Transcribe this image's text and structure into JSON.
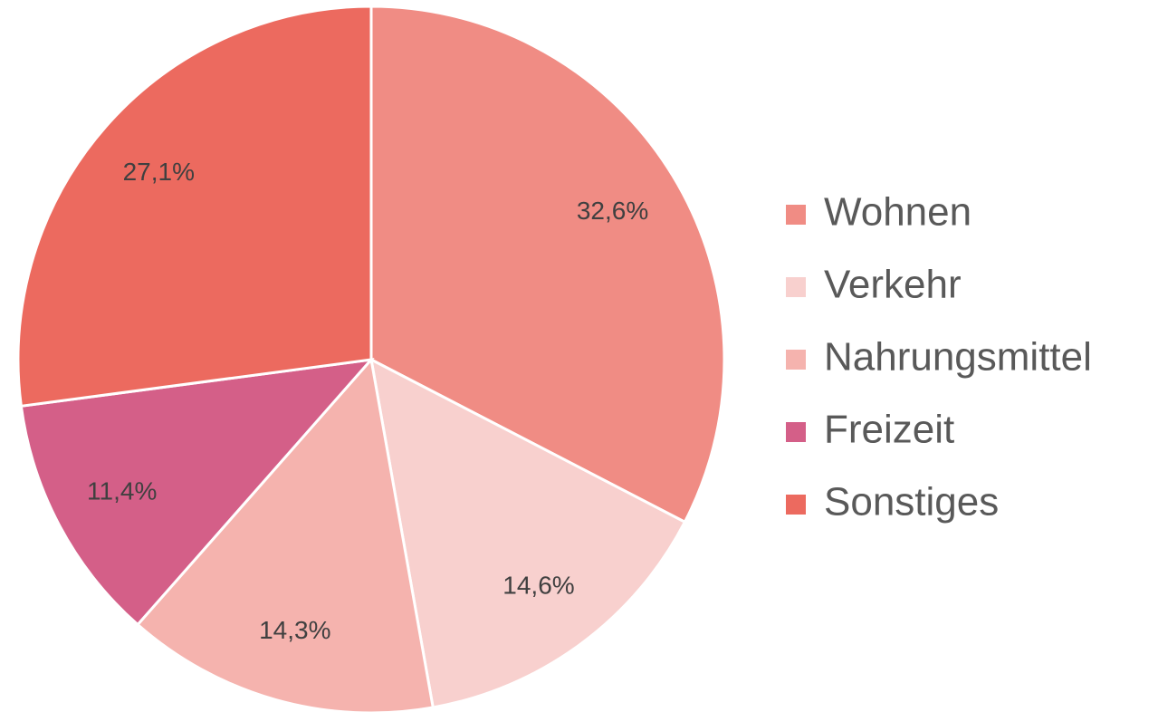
{
  "chart_data": {
    "type": "pie",
    "categories": [
      "Wohnen",
      "Verkehr",
      "Nahrungsmittel",
      "Freizeit",
      "Sonstiges"
    ],
    "values": [
      32.6,
      14.6,
      14.3,
      11.4,
      27.1
    ],
    "value_labels": [
      "32,6%",
      "14,6%",
      "14,3%",
      "11,4%",
      "27,1%"
    ],
    "colors": [
      "#f08c84",
      "#f8d0ce",
      "#f5b3ae",
      "#d45f88",
      "#ec6a5f"
    ],
    "legend": "right"
  }
}
